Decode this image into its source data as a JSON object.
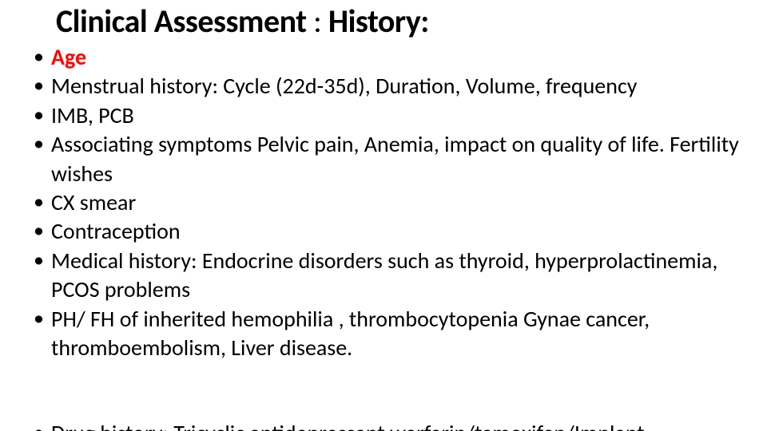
{
  "colors": {
    "background": "#ffffff",
    "text": "#000000",
    "accent_red": "#ff0000"
  },
  "typography": {
    "title_fontsize": 40,
    "body_fontsize": 28,
    "family": "Calibri"
  },
  "title": {
    "part1": "Clinical Assessment",
    "separator": " : ",
    "part2": "History:"
  },
  "bullets": [
    {
      "text": "Age",
      "red": true
    },
    {
      "text": "Menstrual history: Cycle (22d-35d), Duration, Volume, frequency",
      "red": false
    },
    {
      "text": "IMB, PCB",
      "red": false
    },
    {
      "text": "Associating symptoms Pelvic pain, Anemia, impact on quality of life. Fertility wishes",
      "red": false
    },
    {
      "text": "CX smear",
      "red": false
    },
    {
      "text": "Contraception",
      "red": false
    },
    {
      "text": "Medical history: Endocrine disorders such as thyroid, hyperprolactinemia, PCOS problems",
      "red": false
    },
    {
      "text": "PH/ FH of inherited hemophilia , thrombocytopenia  Gynae cancer, thromboembolism, Liver disease.",
      "red": false
    }
  ],
  "cutoff_text": "Drug history: Tricyclic antidepressant  warfarin/tamoxifen/Implant"
}
